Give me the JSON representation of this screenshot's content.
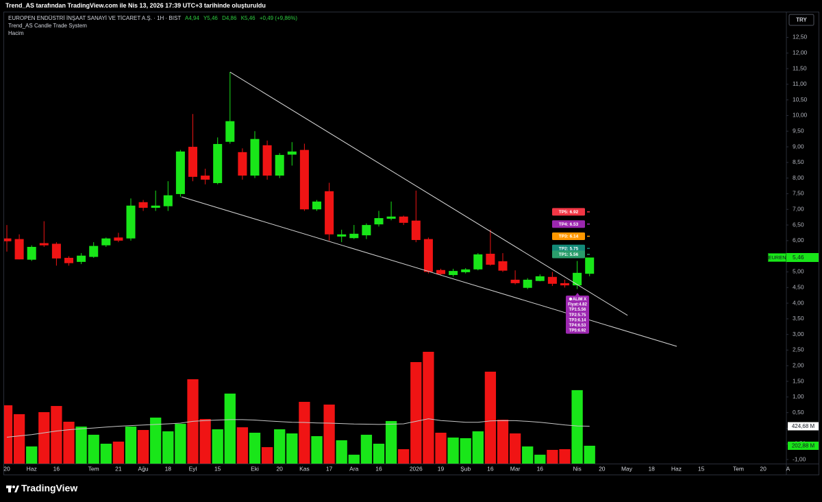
{
  "header": {
    "credit": "Trend_AS tarafından TradingView.com ile Nis 13, 2026 17:39 UTC+3 tarihinde oluşturuldu"
  },
  "footer": {
    "brand": "TradingView"
  },
  "chart_data": {
    "type": "candlestick",
    "title": "EUROPEN ENDÜSTRİ İNŞAAT SANAYİ VE TİCARET A.Ş. · 1H · BIST",
    "ohlc_legend": [
      "A4,94",
      "Y5,46",
      "D4,86",
      "K5,46",
      "+0,49 (+9,86%)"
    ],
    "indicators": [
      "Trend_AS Candle Trade System",
      "Hacim"
    ],
    "currency": "TRY",
    "up_color": "#19e619",
    "down_color": "#f01414",
    "grid": false,
    "categories": [
      "20",
      null,
      "Haz",
      null,
      "16",
      null,
      null,
      "Tem",
      null,
      "21",
      null,
      "Ağu",
      null,
      "18",
      null,
      "Eyl",
      null,
      "15",
      null,
      null,
      "Eki",
      null,
      "20",
      null,
      "Kas",
      null,
      "17",
      null,
      "Ara",
      null,
      "16",
      null,
      null,
      "2026",
      null,
      "19",
      null,
      "Şub",
      null,
      "16",
      null,
      "Mar",
      null,
      "16",
      null,
      null,
      "Nis",
      null,
      "20",
      null,
      "May",
      null,
      "18",
      null,
      "Haz",
      null,
      "15",
      null,
      null,
      "Tem",
      null,
      "20",
      null,
      "A"
    ],
    "open": [
      6.07,
      6.05,
      5.39,
      5.92,
      5.9,
      5.45,
      5.32,
      5.48,
      5.85,
      6.1,
      6.07,
      7.23,
      7.05,
      7.1,
      7.49,
      9.0,
      8.08,
      7.84,
      9.16,
      8.83,
      8.08,
      9.05,
      8.08,
      8.75,
      8.9,
      7.0,
      7.58,
      6.13,
      6.08,
      6.17,
      6.52,
      6.7,
      6.77,
      6.64,
      6.05,
      5.06,
      4.9,
      4.99,
      5.08,
      5.58,
      5.34,
      4.75,
      4.49,
      4.71,
      4.84,
      4.64,
      4.57,
      4.94,
      null,
      null,
      null,
      null,
      null,
      null,
      null,
      null,
      null,
      null,
      null,
      null,
      null,
      null,
      null,
      null
    ],
    "high": [
      6.5,
      6.2,
      5.85,
      6.62,
      5.95,
      5.5,
      5.6,
      5.95,
      6.1,
      6.25,
      7.35,
      7.3,
      7.6,
      7.9,
      8.9,
      10.05,
      8.3,
      9.3,
      11.39,
      8.95,
      9.5,
      9.2,
      8.8,
      9.15,
      9.1,
      7.3,
      7.85,
      6.35,
      6.5,
      6.55,
      6.95,
      7.25,
      6.8,
      7.6,
      6.1,
      5.1,
      5.1,
      5.12,
      5.6,
      6.35,
      5.6,
      5.05,
      4.8,
      4.92,
      5.0,
      4.75,
      5.35,
      5.46,
      null,
      null,
      null,
      null,
      null,
      null,
      null,
      null,
      null,
      null,
      null,
      null,
      null,
      null,
      null,
      null
    ],
    "low": [
      5.65,
      5.4,
      5.35,
      5.8,
      5.2,
      5.2,
      5.25,
      5.45,
      5.8,
      5.95,
      6.0,
      6.95,
      6.95,
      6.95,
      7.4,
      7.9,
      7.8,
      7.8,
      9.1,
      7.95,
      8.0,
      7.95,
      8.0,
      8.4,
      6.95,
      6.95,
      6.0,
      5.95,
      6.05,
      6.05,
      6.45,
      6.65,
      6.5,
      5.95,
      4.95,
      4.9,
      4.85,
      4.95,
      5.05,
      5.2,
      5.0,
      4.6,
      4.45,
      4.7,
      4.55,
      4.5,
      4.45,
      4.86,
      null,
      null,
      null,
      null,
      null,
      null,
      null,
      null,
      null,
      null,
      null,
      null,
      null,
      null,
      null,
      null
    ],
    "close": [
      5.98,
      5.4,
      5.8,
      5.85,
      5.43,
      5.28,
      5.52,
      5.83,
      6.07,
      6.0,
      7.12,
      7.05,
      7.12,
      7.45,
      8.85,
      8.04,
      7.95,
      9.09,
      9.82,
      8.08,
      9.25,
      8.08,
      8.74,
      8.85,
      7.0,
      7.25,
      6.2,
      6.2,
      6.22,
      6.5,
      6.72,
      6.77,
      6.57,
      6.02,
      5.0,
      4.93,
      5.03,
      5.08,
      5.56,
      5.23,
      5.04,
      4.64,
      4.75,
      4.86,
      4.62,
      4.57,
      4.97,
      5.46,
      null,
      null,
      null,
      null,
      null,
      null,
      null,
      null,
      null,
      null,
      null,
      null,
      null,
      null,
      null,
      null
    ],
    "ylim": [
      -1.13,
      13.3
    ],
    "yticks": [
      {
        "value": 12.5,
        "label": "12,50"
      },
      {
        "value": 12,
        "label": "12,00"
      },
      {
        "value": 11.5,
        "label": "11,50"
      },
      {
        "value": 11,
        "label": "11,00"
      },
      {
        "value": 10.5,
        "label": "10,50"
      },
      {
        "value": 10,
        "label": "10,00"
      },
      {
        "value": 9.5,
        "label": "9,50"
      },
      {
        "value": 9,
        "label": "9,00"
      },
      {
        "value": 8.5,
        "label": "8,50"
      },
      {
        "value": 8,
        "label": "8,00"
      },
      {
        "value": 7.5,
        "label": "7,50"
      },
      {
        "value": 7,
        "label": "7,00"
      },
      {
        "value": 6.5,
        "label": "6,50"
      },
      {
        "value": 6,
        "label": "6,00"
      },
      {
        "value": 5.5,
        "label": "5,50"
      },
      {
        "value": 5,
        "label": "5,00"
      },
      {
        "value": 4.5,
        "label": "4,50"
      },
      {
        "value": 4,
        "label": "4,00"
      },
      {
        "value": 3.5,
        "label": "3,50"
      },
      {
        "value": 3,
        "label": "3,00"
      },
      {
        "value": 2.5,
        "label": "2,50"
      },
      {
        "value": 2,
        "label": "2,00"
      },
      {
        "value": 1.5,
        "label": "1,50"
      },
      {
        "value": 1,
        "label": "1,00"
      },
      {
        "value": 0.5,
        "label": "0,50"
      },
      {
        "value": 0,
        "label": "0,00"
      },
      {
        "value": -0.5,
        "label": "-0,50"
      },
      {
        "value": -1,
        "label": "-1,00"
      }
    ],
    "volume": {
      "ylim": [
        0,
        5130
      ],
      "values": [
        663,
        562,
        195,
        585,
        655,
        476,
        421,
        328,
        226,
        250,
        421,
        382,
        523,
        367,
        452,
        959,
        507,
        390,
        796,
        413,
        351,
        187,
        390,
        343,
        702,
        312,
        671,
        265,
        101,
        328,
        226,
        484,
        164,
        1154,
        1271,
        351,
        296,
        289,
        367,
        1045,
        499,
        343,
        195,
        101,
        156,
        164,
        835,
        202.88,
        null,
        null,
        null,
        null,
        null,
        null,
        null,
        null,
        null,
        null,
        null,
        null,
        null,
        null,
        null,
        null
      ],
      "ma_values": [
        300,
        315,
        330,
        350,
        370,
        385,
        395,
        405,
        415,
        425,
        432,
        438,
        445,
        452,
        460,
        480,
        490,
        495,
        500,
        500,
        495,
        485,
        478,
        470,
        468,
        462,
        460,
        455,
        450,
        448,
        445,
        448,
        452,
        480,
        510,
        490,
        480,
        470,
        470,
        485,
        490,
        488,
        480,
        470,
        455,
        440,
        428,
        424.68,
        null,
        null,
        null,
        null,
        null,
        null,
        null,
        null,
        null,
        null,
        null,
        null,
        null,
        null,
        null,
        null
      ],
      "ma_color": "#c8c8c8",
      "labels": [
        {
          "value": 424.68,
          "label": "424,68 M",
          "color": "#ffffff"
        },
        {
          "value": 202.88,
          "label": "202,88 M",
          "color": "#19e619"
        }
      ]
    },
    "trendlines": [
      {
        "points": [
          {
            "x": 18,
            "y": 11.39
          },
          {
            "x": 50.06,
            "y": 3.61
          }
        ],
        "color": "#d8d8d8"
      },
      {
        "points": [
          {
            "x": 14.09,
            "y": 7.4
          },
          {
            "x": 54.03,
            "y": 2.62
          }
        ],
        "color": "#d8d8d8"
      }
    ],
    "targets": [
      {
        "label": "TP5: 6.92",
        "value": 6.92,
        "color": "#f23645"
      },
      {
        "label": "TP4: 6.53",
        "value": 6.53,
        "color": "#9c27b0"
      },
      {
        "label": "TP3: 6.14",
        "value": 6.14,
        "color": "#ff9800"
      },
      {
        "label": "TP2: 5.75",
        "value": 5.75,
        "color": "#138a78"
      },
      {
        "label": "TP1: 5.56",
        "value": 5.56,
        "color": "#2a9d6b"
      }
    ],
    "signal": {
      "title": "ALIM X",
      "lines": [
        "Fiyat:4.82",
        "TP1:5.56",
        "TP2:5.75",
        "TP3:6.14",
        "TP4:6.53",
        "TP5:6.92"
      ],
      "color": "#9c27b0"
    },
    "last_price": {
      "symbol": "EUREN",
      "label": "5,46",
      "value": 5.46,
      "color": "#19e619"
    }
  }
}
